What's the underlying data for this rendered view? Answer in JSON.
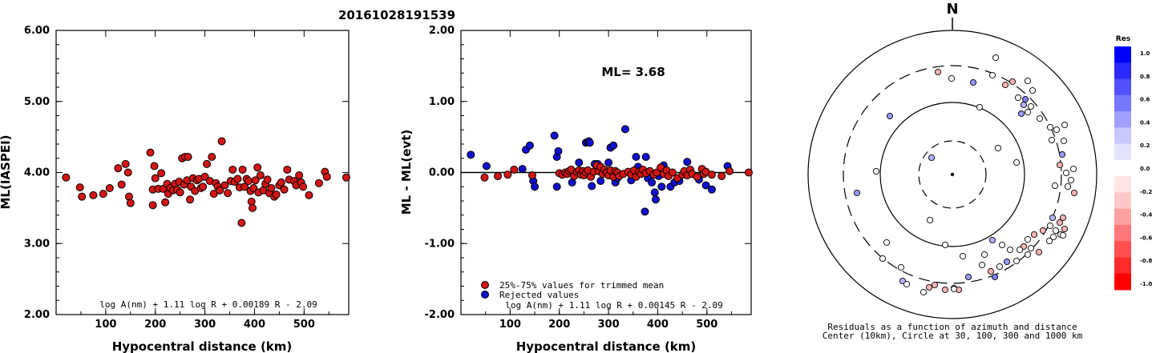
{
  "title": "20161028191539",
  "colors": {
    "red": "#d41515",
    "blue": "#1010d0",
    "outline": "#000000"
  },
  "chart_data": [
    {
      "type": "scatter",
      "name": "left",
      "xlabel": "Hypocentral distance (km)",
      "ylabel": "ML(IASPEI)",
      "xlim": [
        0,
        590
      ],
      "ylim": [
        2.0,
        6.0
      ],
      "xticks": [
        "100",
        "200",
        "300",
        "400",
        "500"
      ],
      "yticks": [
        "2.00",
        "3.00",
        "4.00",
        "5.00",
        "6.00"
      ],
      "formula": "log A(nm) + 1.11 log R + 0.00189 R - 2.09",
      "points": [
        [
          20,
          3.93
        ],
        [
          48,
          3.79
        ],
        [
          52,
          3.66
        ],
        [
          75,
          3.68
        ],
        [
          95,
          3.7
        ],
        [
          108,
          3.78
        ],
        [
          125,
          4.06
        ],
        [
          132,
          3.83
        ],
        [
          140,
          4.12
        ],
        [
          145,
          4.0
        ],
        [
          147,
          3.66
        ],
        [
          150,
          3.57
        ],
        [
          190,
          4.28
        ],
        [
          195,
          3.54
        ],
        [
          195,
          3.76
        ],
        [
          198,
          4.09
        ],
        [
          200,
          3.92
        ],
        [
          206,
          3.77
        ],
        [
          212,
          3.99
        ],
        [
          216,
          3.77
        ],
        [
          220,
          3.58
        ],
        [
          224,
          3.84
        ],
        [
          226,
          3.7
        ],
        [
          230,
          3.78
        ],
        [
          236,
          3.75
        ],
        [
          240,
          3.84
        ],
        [
          244,
          3.76
        ],
        [
          248,
          3.87
        ],
        [
          250,
          3.72
        ],
        [
          254,
          4.2
        ],
        [
          258,
          3.83
        ],
        [
          260,
          4.22
        ],
        [
          264,
          3.89
        ],
        [
          266,
          4.22
        ],
        [
          270,
          3.62
        ],
        [
          272,
          3.8
        ],
        [
          276,
          3.92
        ],
        [
          280,
          3.74
        ],
        [
          284,
          3.89
        ],
        [
          288,
          3.91
        ],
        [
          292,
          3.78
        ],
        [
          296,
          3.8
        ],
        [
          300,
          3.94
        ],
        [
          304,
          4.12
        ],
        [
          310,
          3.88
        ],
        [
          314,
          4.22
        ],
        [
          318,
          3.7
        ],
        [
          322,
          3.85
        ],
        [
          326,
          3.8
        ],
        [
          330,
          3.75
        ],
        [
          334,
          4.44
        ],
        [
          340,
          3.82
        ],
        [
          346,
          3.71
        ],
        [
          352,
          3.88
        ],
        [
          356,
          4.04
        ],
        [
          360,
          3.87
        ],
        [
          366,
          3.91
        ],
        [
          370,
          3.79
        ],
        [
          374,
          3.29
        ],
        [
          376,
          4.04
        ],
        [
          380,
          3.8
        ],
        [
          384,
          3.91
        ],
        [
          388,
          3.88
        ],
        [
          392,
          3.74
        ],
        [
          394,
          3.59
        ],
        [
          396,
          3.5
        ],
        [
          398,
          3.78
        ],
        [
          402,
          3.89
        ],
        [
          406,
          4.07
        ],
        [
          408,
          3.72
        ],
        [
          412,
          3.96
        ],
        [
          418,
          3.75
        ],
        [
          422,
          3.84
        ],
        [
          426,
          3.9
        ],
        [
          430,
          3.71
        ],
        [
          434,
          3.78
        ],
        [
          440,
          3.66
        ],
        [
          444,
          3.69
        ],
        [
          450,
          3.82
        ],
        [
          454,
          3.86
        ],
        [
          460,
          3.76
        ],
        [
          466,
          4.04
        ],
        [
          470,
          3.9
        ],
        [
          480,
          3.88
        ],
        [
          484,
          3.82
        ],
        [
          490,
          3.96
        ],
        [
          494,
          3.86
        ],
        [
          498,
          3.8
        ],
        [
          510,
          3.68
        ],
        [
          530,
          3.85
        ],
        [
          542,
          4.01
        ],
        [
          546,
          3.94
        ],
        [
          585,
          3.93
        ]
      ]
    },
    {
      "type": "scatter",
      "name": "middle",
      "xlabel": "Hypocentral distance (km)",
      "ylabel": "ML - ML(evt)",
      "xlim": [
        0,
        590
      ],
      "ylim": [
        -2.0,
        2.0
      ],
      "xticks": [
        "100",
        "200",
        "300",
        "400",
        "500"
      ],
      "yticks": [
        "-2.00",
        "-1.00",
        "0.00",
        "1.00",
        "2.00"
      ],
      "annotation": "ML= 3.68",
      "legend": [
        "25%-75% values for trimmed mean",
        "Rejected values"
      ],
      "formula": "log A(nm) + 1.11 log R + 0.00145 R - 2.09",
      "red_points": [
        [
          48,
          -0.07
        ],
        [
          75,
          -0.05
        ],
        [
          95,
          -0.03
        ],
        [
          108,
          0.04
        ],
        [
          145,
          -0.04
        ],
        [
          200,
          -0.01
        ],
        [
          206,
          -0.03
        ],
        [
          212,
          0.0
        ],
        [
          216,
          -0.02
        ],
        [
          220,
          0.02
        ],
        [
          224,
          0.04
        ],
        [
          230,
          -0.05
        ],
        [
          236,
          0.01
        ],
        [
          240,
          0.03
        ],
        [
          244,
          -0.03
        ],
        [
          248,
          0.02
        ],
        [
          250,
          -0.04
        ],
        [
          254,
          0.0
        ],
        [
          258,
          0.03
        ],
        [
          264,
          -0.06
        ],
        [
          270,
          0.01
        ],
        [
          276,
          0.1
        ],
        [
          280,
          0.02
        ],
        [
          284,
          0.08
        ],
        [
          288,
          -0.02
        ],
        [
          292,
          0.04
        ],
        [
          296,
          0.0
        ],
        [
          300,
          -0.04
        ],
        [
          304,
          0.03
        ],
        [
          310,
          -0.06
        ],
        [
          314,
          0.02
        ],
        [
          318,
          0.0
        ],
        [
          322,
          -0.05
        ],
        [
          330,
          -0.02
        ],
        [
          340,
          0.01
        ],
        [
          346,
          -0.03
        ],
        [
          352,
          0.03
        ],
        [
          356,
          -0.06
        ],
        [
          362,
          0.01
        ],
        [
          366,
          -0.02
        ],
        [
          370,
          0.04
        ],
        [
          376,
          -0.01
        ],
        [
          384,
          0.02
        ],
        [
          392,
          -0.03
        ],
        [
          398,
          0.0
        ],
        [
          406,
          0.07
        ],
        [
          412,
          -0.02
        ],
        [
          418,
          0.03
        ],
        [
          422,
          -0.05
        ],
        [
          430,
          0.0
        ],
        [
          440,
          -0.08
        ],
        [
          450,
          -0.03
        ],
        [
          454,
          0.02
        ],
        [
          460,
          -0.04
        ],
        [
          466,
          0.04
        ],
        [
          470,
          -0.02
        ],
        [
          480,
          -0.06
        ],
        [
          490,
          0.05
        ],
        [
          494,
          -0.02
        ],
        [
          498,
          0.01
        ],
        [
          510,
          -0.03
        ],
        [
          530,
          -0.05
        ],
        [
          546,
          0.02
        ],
        [
          585,
          0.0
        ]
      ],
      "blue_points": [
        [
          20,
          0.25
        ],
        [
          52,
          0.09
        ],
        [
          125,
          0.05
        ],
        [
          132,
          0.32
        ],
        [
          140,
          0.38
        ],
        [
          147,
          -0.12
        ],
        [
          150,
          -0.2
        ],
        [
          190,
          0.52
        ],
        [
          195,
          0.22
        ],
        [
          195,
          -0.2
        ],
        [
          198,
          0.3
        ],
        [
          226,
          -0.14
        ],
        [
          240,
          0.14
        ],
        [
          254,
          0.42
        ],
        [
          258,
          0.43
        ],
        [
          260,
          0.44
        ],
        [
          262,
          0.42
        ],
        [
          266,
          -0.19
        ],
        [
          272,
          0.12
        ],
        [
          276,
          0.08
        ],
        [
          278,
          0.12
        ],
        [
          284,
          -0.12
        ],
        [
          300,
          0.14
        ],
        [
          304,
          0.35
        ],
        [
          310,
          0.38
        ],
        [
          314,
          -0.14
        ],
        [
          318,
          -0.08
        ],
        [
          334,
          0.61
        ],
        [
          346,
          -0.11
        ],
        [
          356,
          0.22
        ],
        [
          360,
          0.08
        ],
        [
          374,
          -0.55
        ],
        [
          376,
          0.22
        ],
        [
          380,
          -0.08
        ],
        [
          388,
          -0.14
        ],
        [
          394,
          -0.28
        ],
        [
          396,
          -0.38
        ],
        [
          402,
          -0.05
        ],
        [
          408,
          -0.2
        ],
        [
          412,
          0.1
        ],
        [
          426,
          -0.2
        ],
        [
          434,
          -0.14
        ],
        [
          444,
          -0.12
        ],
        [
          460,
          0.15
        ],
        [
          484,
          -0.1
        ],
        [
          498,
          -0.18
        ],
        [
          510,
          -0.24
        ],
        [
          542,
          0.09
        ]
      ]
    },
    {
      "type": "polar-scatter",
      "name": "right",
      "north_label": "N",
      "caption_line1": "Residuals as a function of azimuth and distance",
      "caption_line2": "Center (10km), Circle at 30, 100, 300 and 1000 km",
      "colorbar_title": "Res",
      "colorbar_ticks": [
        "1.0",
        "0.8",
        "0.6",
        "0.4",
        "0.2",
        "0.0",
        "-0.2",
        "-0.4",
        "-0.6",
        "-0.8",
        "-1.0"
      ],
      "colorbar_colors": [
        "#0000ff",
        "#2a2aff",
        "#5050ff",
        "#7878ff",
        "#a0a0ff",
        "#c8c8ff",
        "#e4e4ff",
        "#ffffff",
        "#ffe4e4",
        "#ffc8c8",
        "#ffa0a0",
        "#ff7878",
        "#ff5050",
        "#ff2a2a",
        "#ff0000"
      ],
      "stations": [
        [
          1242,
          72,
          0.0
        ],
        [
          1170,
          90,
          -0.3
        ],
        [
          1187,
          98,
          0.0
        ],
        [
          1214,
          103,
          0.4
        ],
        [
          1238,
          94,
          0.0
        ],
        [
          1254,
          106,
          -0.3
        ],
        [
          1263,
          102,
          -0.3
        ],
        [
          1282,
          101,
          0.0
        ],
        [
          1288,
          113,
          0.0
        ],
        [
          1270,
          122,
          0.0
        ],
        [
          1279,
          124,
          0.5
        ],
        [
          1277,
          131,
          0.3
        ],
        [
          1286,
          133,
          0.0
        ],
        [
          1274,
          142,
          0.4
        ],
        [
          1282,
          140,
          0.0
        ],
        [
          1222,
          134,
          0.0
        ],
        [
          1110,
          145,
          0.4
        ],
        [
          1297,
          148,
          0.0
        ],
        [
          1310,
          159,
          0.0
        ],
        [
          1318,
          162,
          0.0
        ],
        [
          1328,
          156,
          0.0
        ],
        [
          1327,
          176,
          0.0
        ],
        [
          1325,
          193,
          0.4
        ],
        [
          1312,
          175,
          0.0
        ],
        [
          1245,
          185,
          0.0
        ],
        [
          1322,
          206,
          -0.3
        ],
        [
          1339,
          211,
          0.0
        ],
        [
          1268,
          203,
          0.0
        ],
        [
          1330,
          216,
          0.0
        ],
        [
          1336,
          225,
          0.0
        ],
        [
          1162,
          197,
          0.3
        ],
        [
          1093,
          214,
          0.0
        ],
        [
          1340,
          241,
          -0.3
        ],
        [
          1332,
          233,
          0.0
        ],
        [
          1316,
          232,
          0.0
        ],
        [
          1069,
          241,
          0.4
        ],
        [
          1160,
          275,
          0.0
        ],
        [
          1313,
          272,
          0.3
        ],
        [
          1326,
          272,
          -0.3
        ],
        [
          1322,
          278,
          -0.3
        ],
        [
          1310,
          282,
          0.0
        ],
        [
          1328,
          286,
          -0.3
        ],
        [
          1317,
          288,
          0.0
        ],
        [
          1323,
          293,
          0.0
        ],
        [
          1314,
          296,
          0.0
        ],
        [
          1301,
          288,
          -0.3
        ],
        [
          1309,
          301,
          0.0
        ],
        [
          1326,
          294,
          0.0
        ],
        [
          1290,
          293,
          -0.3
        ],
        [
          1282,
          299,
          0.0
        ],
        [
          1277,
          308,
          -0.3
        ],
        [
          1286,
          310,
          0.0
        ],
        [
          1296,
          315,
          -0.3
        ],
        [
          1282,
          318,
          0.0
        ],
        [
          1272,
          312,
          0.0
        ],
        [
          1260,
          312,
          0.0
        ],
        [
          1268,
          326,
          0.0
        ],
        [
          1256,
          327,
          0.4
        ],
        [
          1250,
          306,
          0.0
        ],
        [
          1238,
          300,
          0.3
        ],
        [
          1228,
          318,
          0.0
        ],
        [
          1225,
          331,
          0.0
        ],
        [
          1247,
          333,
          0.0
        ],
        [
          1241,
          346,
          0.5
        ],
        [
          1236,
          339,
          -0.3
        ],
        [
          1201,
          320,
          0.0
        ],
        [
          1179,
          306,
          0.0
        ],
        [
          1106,
          303,
          0.0
        ],
        [
          1101,
          323,
          0.0
        ],
        [
          1208,
          346,
          0.4
        ],
        [
          1124,
          334,
          0.0
        ],
        [
          1126,
          351,
          0.3
        ],
        [
          1190,
          360,
          0.3
        ],
        [
          1179,
          362,
          -0.3
        ],
        [
          1196,
          362,
          -0.3
        ],
        [
          1166,
          356,
          -0.3
        ],
        [
          1159,
          359,
          -0.3
        ],
        [
          1131,
          355,
          0.0
        ],
        [
          1152,
          365,
          0.0
        ],
        [
          1190,
          361,
          0.0
        ]
      ]
    }
  ]
}
